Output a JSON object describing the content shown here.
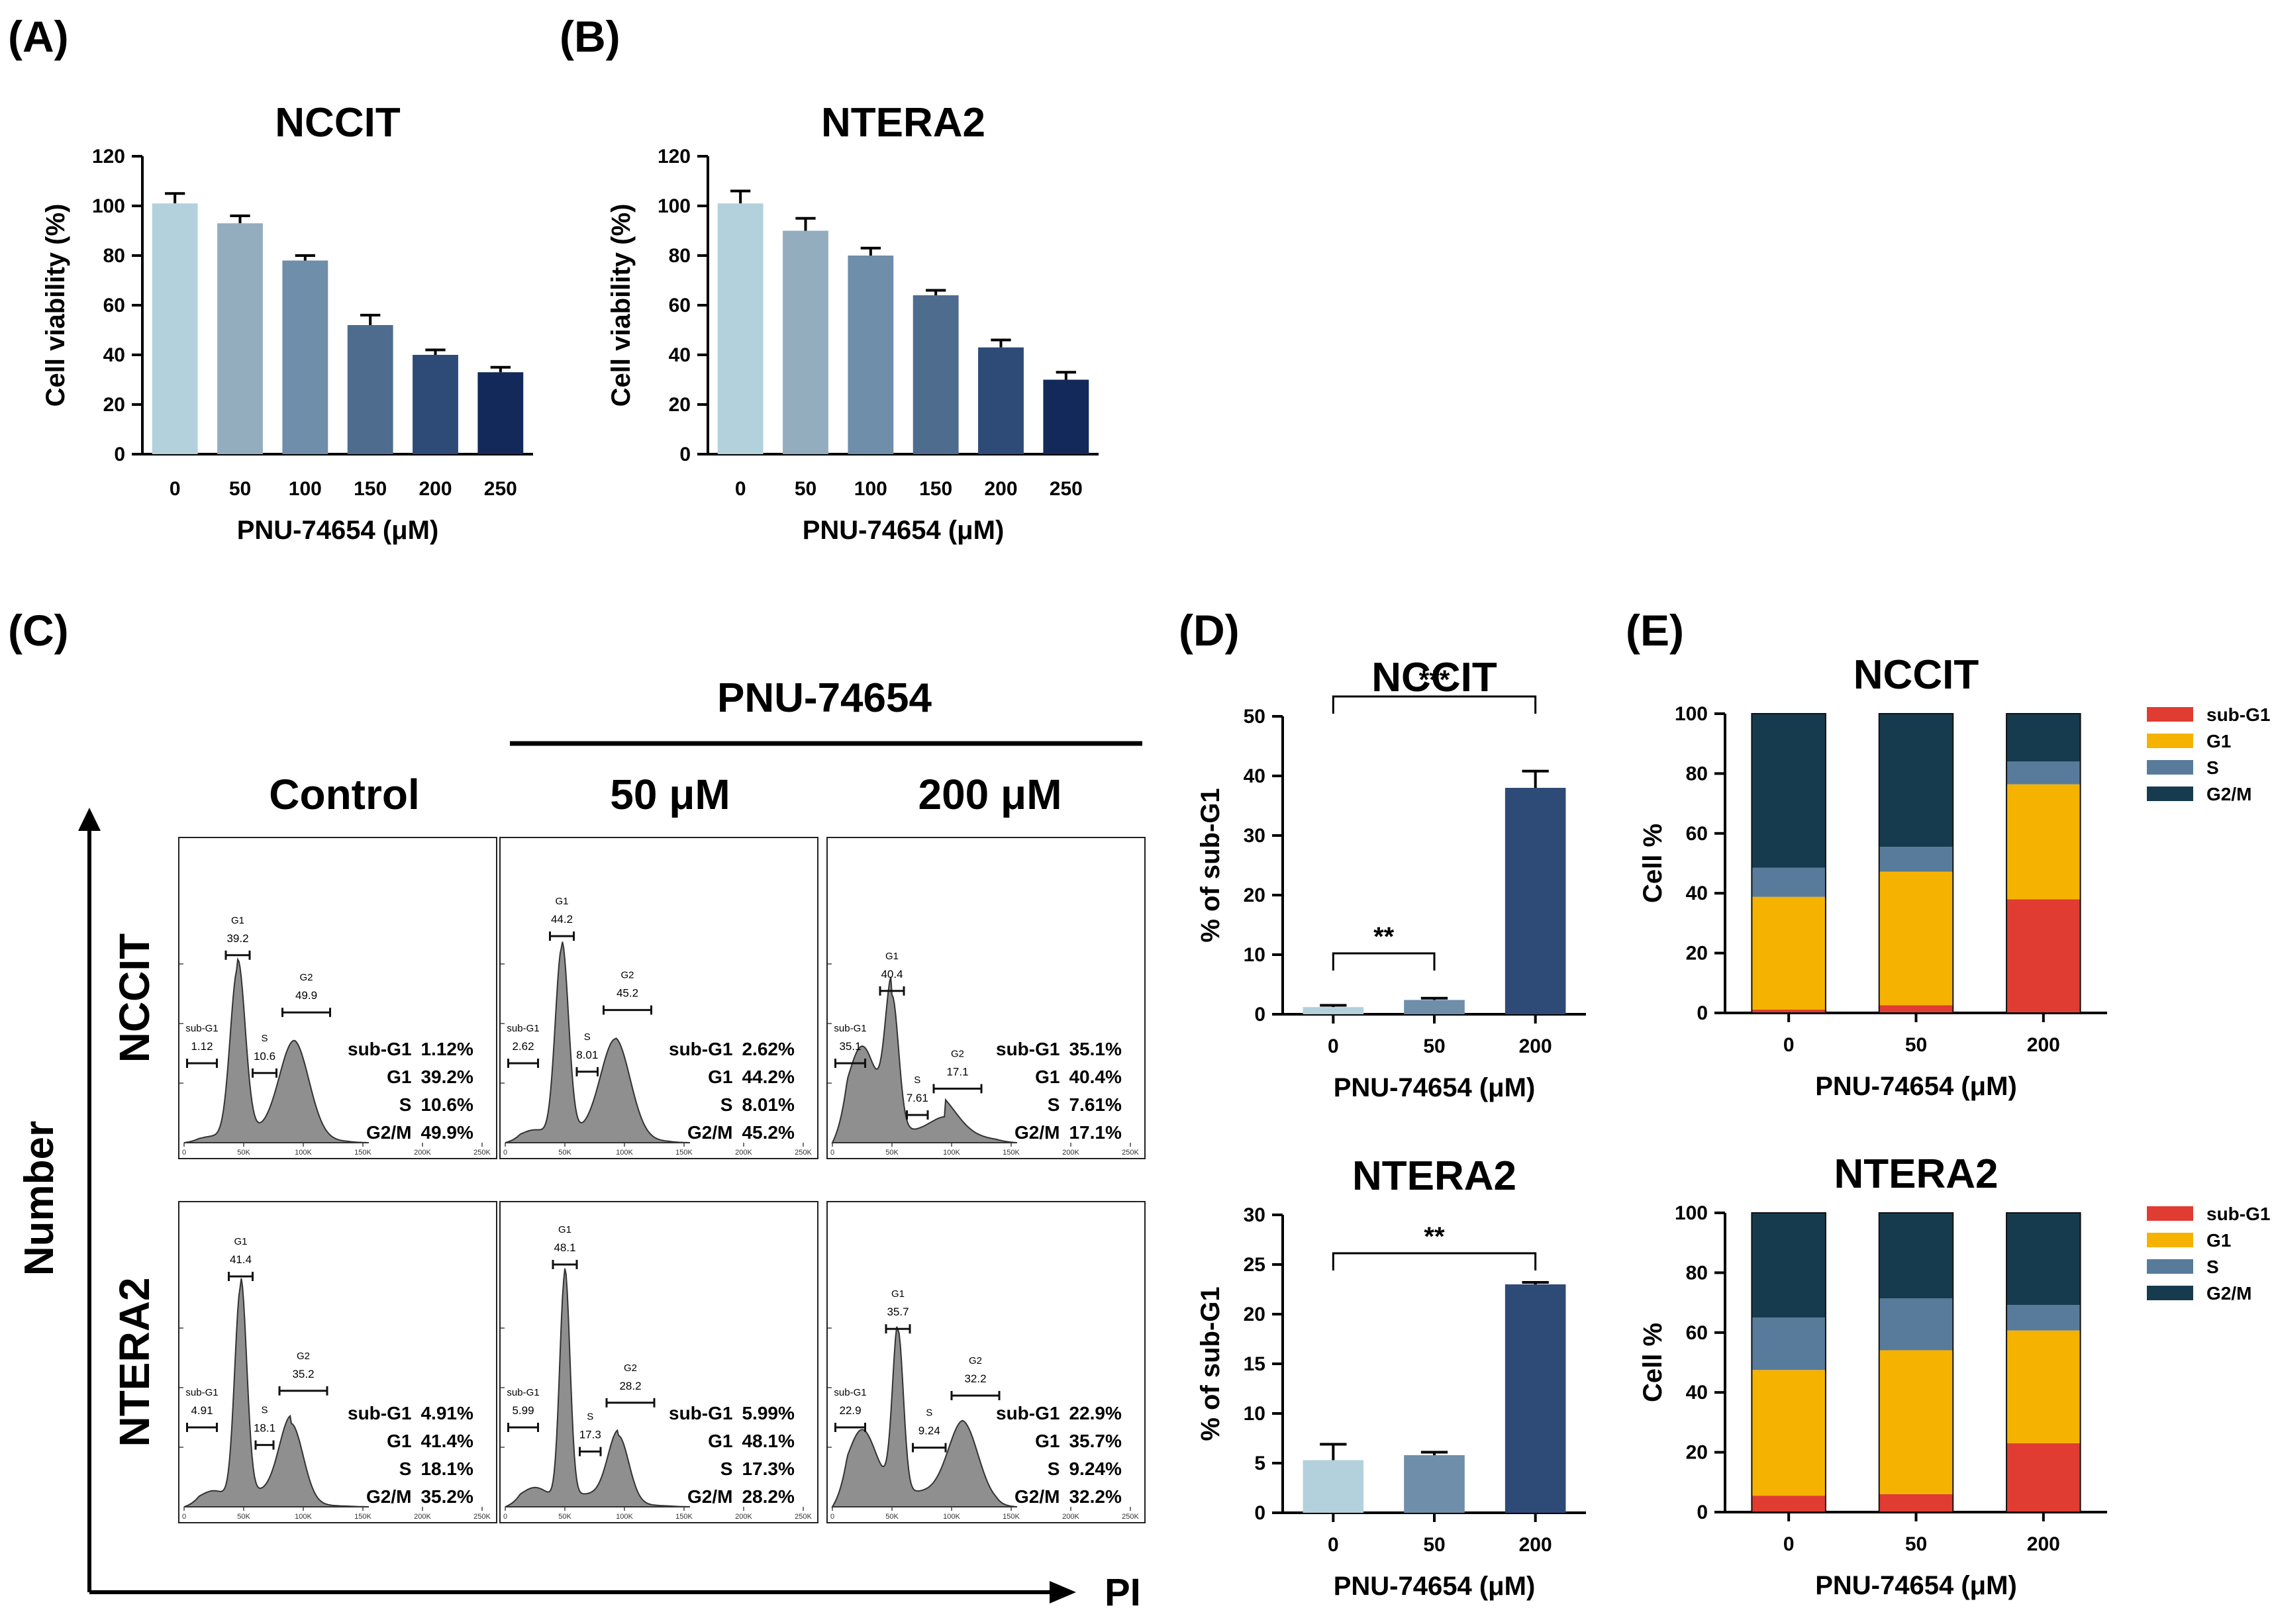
{
  "panel_letters": [
    "(A)",
    "(B)",
    "(C)",
    "(D)",
    "(E)"
  ],
  "colors": {
    "viability": [
      "#b3d1dc",
      "#93adbf",
      "#6f8eaa",
      "#4e6c8e",
      "#2e4a76",
      "#12295a"
    ],
    "subg1": [
      "#b3d1dc",
      "#6f8eaa",
      "#2e4a76"
    ],
    "phase": {
      "sub-G1": "#e03c32",
      "G1": "#f5b300",
      "S": "#587b9c",
      "G2/M": "#163b4e"
    },
    "histogram": "#8f8f8f"
  },
  "chart_data": [
    {
      "id": "A",
      "type": "bar",
      "title": "NCCIT",
      "categories": [
        "0",
        "50",
        "100",
        "150",
        "200",
        "250"
      ],
      "values": [
        101,
        93,
        78,
        52,
        40,
        33
      ],
      "errors": [
        4,
        3,
        2,
        4,
        2,
        2
      ],
      "xlabel": "PNU-74654  (μM)",
      "ylabel": "Cell viability (%)",
      "ylim": [
        0,
        120
      ],
      "yticks": [
        "0",
        "20",
        "40",
        "60",
        "80",
        "100",
        "120"
      ]
    },
    {
      "id": "B",
      "type": "bar",
      "title": "NTERA2",
      "categories": [
        "0",
        "50",
        "100",
        "150",
        "200",
        "250"
      ],
      "values": [
        101,
        90,
        80,
        64,
        43,
        30
      ],
      "errors": [
        5,
        5,
        3,
        2,
        3,
        3
      ],
      "xlabel": "PNU-74654  (μM)",
      "ylabel": "Cell viability (%)",
      "ylim": [
        0,
        120
      ],
      "yticks": [
        "0",
        "20",
        "40",
        "60",
        "80",
        "100",
        "120"
      ]
    },
    {
      "id": "C",
      "type": "histogram",
      "title": "PNU-74654",
      "ylabel": "Number",
      "xlabel": "PI",
      "columns": [
        "Control",
        "50 μM",
        "200 μM"
      ],
      "rows": [
        "NCCIT",
        "NTERA2"
      ],
      "xticks": [
        "0",
        "50K",
        "100K",
        "150K",
        "200K",
        "250K"
      ],
      "table_labels": [
        "sub-G1",
        "G1",
        "S",
        "G2/M"
      ],
      "plots": [
        {
          "row": "NCCIT",
          "col": "Control",
          "gates": {
            "sub-G1": "1.12",
            "G1": "39.2",
            "S": "10.6",
            "G2": "49.9"
          },
          "table": [
            "1.12%",
            "39.2%",
            "10.6%",
            "49.9%"
          ]
        },
        {
          "row": "NCCIT",
          "col": "50 μM",
          "gates": {
            "sub-G1": "2.62",
            "G1": "44.2",
            "S": "8.01",
            "G2": "45.2"
          },
          "table": [
            "2.62%",
            "44.2%",
            "8.01%",
            "45.2%"
          ]
        },
        {
          "row": "NCCIT",
          "col": "200 μM",
          "gates": {
            "sub-G1": "35.1",
            "G1": "40.4",
            "S": "7.61",
            "G2": "17.1"
          },
          "table": [
            "35.1%",
            "40.4%",
            "7.61%",
            "17.1%"
          ]
        },
        {
          "row": "NTERA2",
          "col": "Control",
          "gates": {
            "sub-G1": "4.91",
            "G1": "41.4",
            "S": "18.1",
            "G2": "35.2"
          },
          "table": [
            "4.91%",
            "41.4%",
            "18.1%",
            "35.2%"
          ]
        },
        {
          "row": "NTERA2",
          "col": "50 μM",
          "gates": {
            "sub-G1": "5.99",
            "G1": "48.1",
            "S": "17.3",
            "G2": "28.2"
          },
          "table": [
            "5.99%",
            "48.1%",
            "17.3%",
            "28.2%"
          ]
        },
        {
          "row": "NTERA2",
          "col": "200 μM",
          "gates": {
            "sub-G1": "22.9",
            "G1": "35.7",
            "S": "9.24",
            "G2": "32.2"
          },
          "table": [
            "22.9%",
            "35.7%",
            "9.24%",
            "32.2%"
          ]
        }
      ]
    },
    {
      "id": "D1",
      "type": "bar",
      "title": "NCCIT",
      "categories": [
        "0",
        "50",
        "200"
      ],
      "values": [
        1.2,
        2.4,
        38
      ],
      "errors": [
        0.3,
        0.3,
        2.8
      ],
      "xlabel": "PNU-74654  (μM)",
      "ylabel": "% of sub-G1",
      "ylim": [
        0,
        50
      ],
      "yticks": [
        "0",
        "10",
        "20",
        "30",
        "40",
        "50"
      ],
      "significance": [
        {
          "from": "0",
          "to": "200",
          "label": "***"
        },
        {
          "from": "0",
          "to": "50",
          "label": "**"
        }
      ]
    },
    {
      "id": "D2",
      "type": "bar",
      "title": "NTERA2",
      "categories": [
        "0",
        "50",
        "200"
      ],
      "values": [
        5.3,
        5.8,
        23
      ],
      "errors": [
        1.6,
        0.3,
        0.2
      ],
      "xlabel": "PNU-74654 (μM)",
      "ylabel": "% of sub-G1",
      "ylim": [
        0,
        30
      ],
      "yticks": [
        "0",
        "5",
        "10",
        "15",
        "20",
        "25",
        "30"
      ],
      "significance": [
        {
          "from": "0",
          "to": "200",
          "label": "**"
        }
      ]
    },
    {
      "id": "E1",
      "type": "bar",
      "stacked": true,
      "title": "NCCIT",
      "categories": [
        "0",
        "50",
        "200"
      ],
      "series": [
        {
          "name": "sub-G1",
          "values": [
            1.1,
            2.6,
            38
          ]
        },
        {
          "name": "G1",
          "values": [
            37.7,
            44.6,
            38.4
          ]
        },
        {
          "name": "S",
          "values": [
            9.7,
            8.3,
            7.6
          ]
        },
        {
          "name": "G2/M",
          "values": [
            51.5,
            44.5,
            16
          ]
        }
      ],
      "xlabel": "PNU-74654  (μM)",
      "ylabel": "Cell %",
      "ylim": [
        0,
        100
      ],
      "yticks": [
        "0",
        "20",
        "40",
        "60",
        "80",
        "100"
      ],
      "legend": "top-right"
    },
    {
      "id": "E2",
      "type": "bar",
      "stacked": true,
      "title": "NTERA2",
      "categories": [
        "0",
        "50",
        "200"
      ],
      "series": [
        {
          "name": "sub-G1",
          "values": [
            5.5,
            6,
            23
          ]
        },
        {
          "name": "G1",
          "values": [
            42,
            48.1,
            37.7
          ]
        },
        {
          "name": "S",
          "values": [
            17.5,
            17.3,
            8.5
          ]
        },
        {
          "name": "G2/M",
          "values": [
            35,
            28.6,
            30.8
          ]
        }
      ],
      "xlabel": "PNU-74654  (μM)",
      "ylabel": "Cell %",
      "ylim": [
        0,
        100
      ],
      "yticks": [
        "0",
        "20",
        "40",
        "60",
        "80",
        "100"
      ],
      "legend": "top-right"
    }
  ]
}
